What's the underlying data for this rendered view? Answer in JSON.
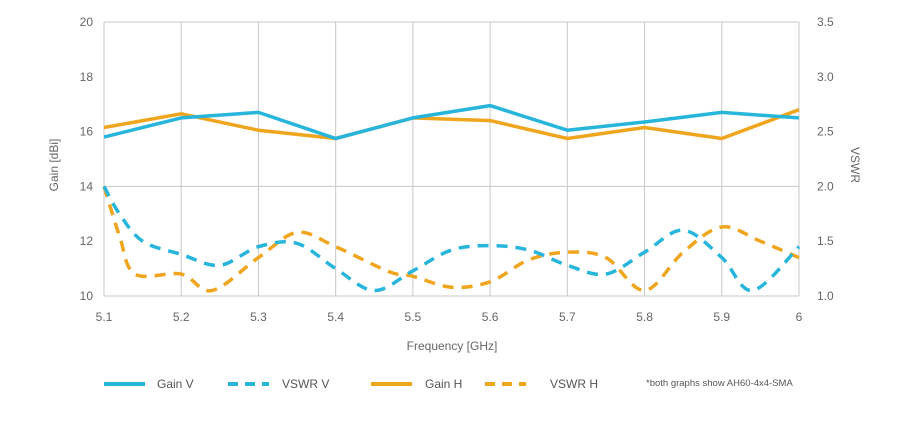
{
  "chart_data": {
    "type": "line",
    "xlabel": "Frequency [GHz]",
    "ylabel_left": "Gain [dBi]",
    "ylabel_right": "VSWR",
    "x_ticks": [
      "5.1",
      "5.2",
      "5.3",
      "5.4",
      "5.5",
      "5.6",
      "5.7",
      "5.8",
      "5.9",
      "6"
    ],
    "xlim": [
      5.1,
      6.0
    ],
    "y_left_ticks": [
      "10",
      "12",
      "14",
      "16",
      "18",
      "20"
    ],
    "ylim_left": [
      10,
      20
    ],
    "y_right_ticks": [
      "1.0",
      "1.5",
      "2.0",
      "2.5",
      "3.0",
      "3.5"
    ],
    "ylim_right": [
      1.0,
      3.5
    ],
    "grid": "vertical lines at every x tick, horizontal line at Gain 14",
    "legend_position": "bottom",
    "note": "*both graphs show AH60-4x4-SMA",
    "series": [
      {
        "name": "Gain V",
        "axis": "left",
        "style": "solid",
        "color": "#27b5dc",
        "x": [
          5.1,
          5.2,
          5.3,
          5.4,
          5.5,
          5.6,
          5.7,
          5.8,
          5.9,
          6.0
        ],
        "y": [
          15.8,
          16.5,
          16.7,
          15.75,
          16.5,
          16.95,
          16.05,
          16.35,
          16.7,
          16.5
        ]
      },
      {
        "name": "VSWR V",
        "axis": "right",
        "style": "dashed",
        "color": "#27b5dc",
        "x": [
          5.1,
          5.12,
          5.15,
          5.2,
          5.25,
          5.3,
          5.35,
          5.4,
          5.45,
          5.5,
          5.55,
          5.6,
          5.65,
          5.7,
          5.75,
          5.8,
          5.85,
          5.9,
          5.94,
          6.0
        ],
        "y": [
          2.0,
          1.75,
          1.5,
          1.38,
          1.28,
          1.45,
          1.48,
          1.25,
          1.05,
          1.23,
          1.42,
          1.46,
          1.42,
          1.28,
          1.2,
          1.4,
          1.6,
          1.35,
          1.05,
          1.45
        ]
      },
      {
        "name": "Gain H",
        "axis": "left",
        "style": "solid",
        "color": "#f0a51e",
        "x": [
          5.1,
          5.2,
          5.3,
          5.4,
          5.5,
          5.6,
          5.7,
          5.8,
          5.9,
          6.0
        ],
        "y": [
          16.15,
          16.65,
          16.05,
          15.75,
          16.5,
          16.4,
          15.75,
          16.15,
          15.75,
          16.8
        ]
      },
      {
        "name": "VSWR H",
        "axis": "right",
        "style": "dashed",
        "color": "#f0a51e",
        "x": [
          5.1,
          5.12,
          5.14,
          5.2,
          5.24,
          5.3,
          5.35,
          5.4,
          5.47,
          5.5,
          5.55,
          5.6,
          5.65,
          5.7,
          5.75,
          5.8,
          5.85,
          5.9,
          5.95,
          6.0
        ],
        "y": [
          2.0,
          1.55,
          1.2,
          1.2,
          1.05,
          1.35,
          1.58,
          1.45,
          1.22,
          1.18,
          1.08,
          1.13,
          1.33,
          1.4,
          1.35,
          1.05,
          1.4,
          1.63,
          1.5,
          1.35
        ]
      }
    ]
  }
}
